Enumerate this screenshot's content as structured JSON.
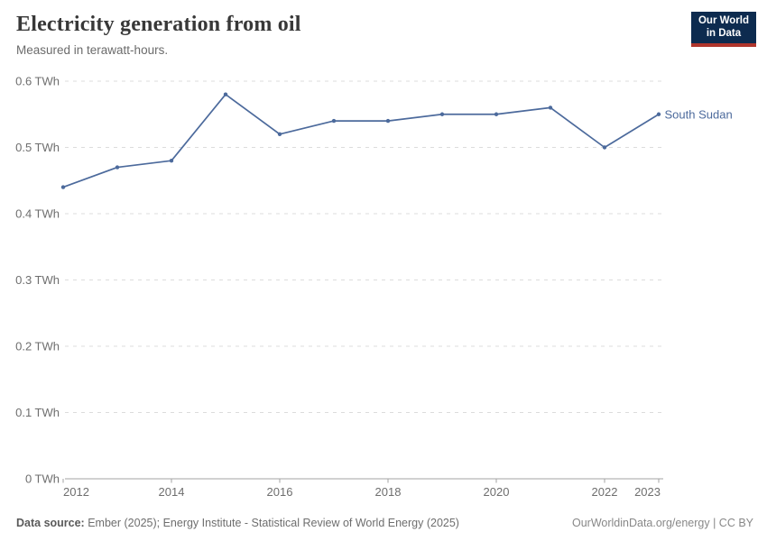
{
  "header": {
    "title": "Electricity generation from oil",
    "subtitle": "Measured in terawatt-hours."
  },
  "logo": {
    "line1": "Our World",
    "line2": "in Data",
    "bg_color": "#0d2b4f",
    "bar_color": "#b0352c"
  },
  "chart_data": {
    "type": "line",
    "title": "Electricity generation from oil",
    "unit": "TWh",
    "x": [
      2012,
      2013,
      2014,
      2015,
      2016,
      2017,
      2018,
      2019,
      2020,
      2021,
      2022,
      2023
    ],
    "series": [
      {
        "name": "South Sudan",
        "values": [
          0.44,
          0.47,
          0.48,
          0.58,
          0.52,
          0.54,
          0.54,
          0.55,
          0.55,
          0.56,
          0.5,
          0.55
        ]
      }
    ],
    "xlim": [
      2012,
      2023
    ],
    "ylim": [
      0,
      0.6
    ],
    "grid": true,
    "legend_position": "end-of-line-label",
    "y_ticks": [
      {
        "value": 0,
        "label": "0 TWh"
      },
      {
        "value": 0.1,
        "label": "0.1 TWh"
      },
      {
        "value": 0.2,
        "label": "0.2 TWh"
      },
      {
        "value": 0.3,
        "label": "0.3 TWh"
      },
      {
        "value": 0.4,
        "label": "0.4 TWh"
      },
      {
        "value": 0.5,
        "label": "0.5 TWh"
      },
      {
        "value": 0.6,
        "label": "0.6 TWh"
      }
    ],
    "x_ticks": [
      {
        "value": 2012,
        "label": "2012"
      },
      {
        "value": 2014,
        "label": "2014"
      },
      {
        "value": 2016,
        "label": "2016"
      },
      {
        "value": 2018,
        "label": "2018"
      },
      {
        "value": 2020,
        "label": "2020"
      },
      {
        "value": 2022,
        "label": "2022"
      },
      {
        "value": 2023,
        "label": "2023"
      }
    ],
    "colors": {
      "line": "#4C6A9C",
      "grid": "#dcdcdc",
      "axis": "#a3a3a3",
      "tick_text": "#6e6e6e"
    }
  },
  "footer": {
    "source_label": "Data source:",
    "source_text": " Ember (2025); Energy Institute - Statistical Review of World Energy (2025)",
    "credit": "OurWorldinData.org/energy | CC BY"
  }
}
